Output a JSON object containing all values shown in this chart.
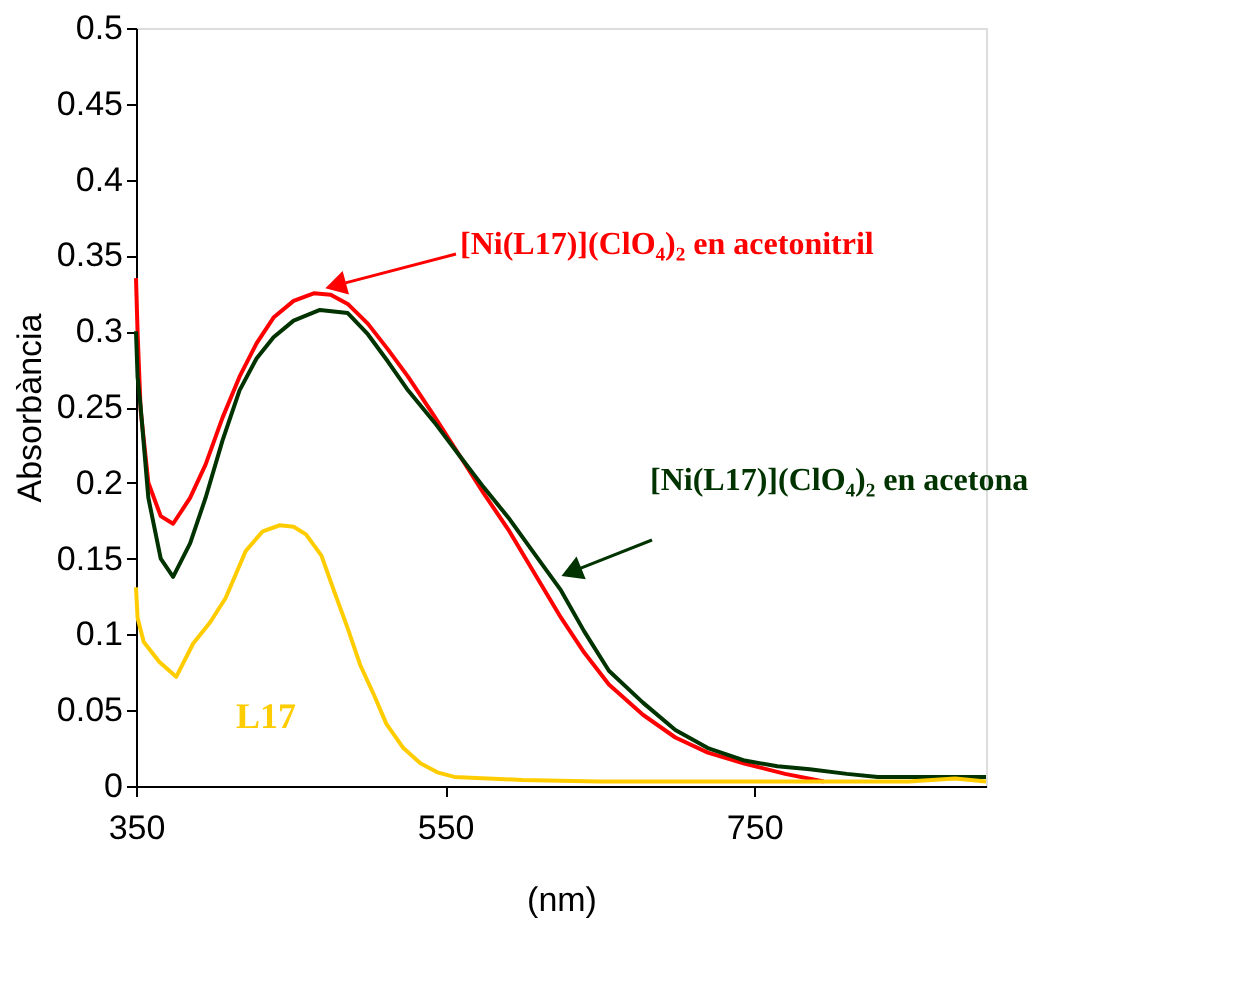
{
  "chart_data": {
    "type": "line",
    "xlabel": "(nm)",
    "ylabel": "Absorbància",
    "xlim": [
      350,
      900
    ],
    "xticks": [
      350,
      550,
      750
    ],
    "ylim": [
      0,
      0.5
    ],
    "yticks": [
      0,
      0.05,
      0.1,
      0.15,
      0.2,
      0.25,
      0.3,
      0.35,
      0.4,
      0.45,
      0.5
    ],
    "grid": false,
    "series": [
      {
        "name": "[Ni(L17)](ClO₄)₂ en acetonitril",
        "color": "#ff0000",
        "x": [
          350,
          351,
          353,
          358,
          366,
          374,
          385,
          395,
          406,
          417,
          428,
          439,
          452,
          465,
          476,
          487,
          500,
          513,
          526,
          543,
          560,
          575,
          591,
          608,
          625,
          640,
          656,
          678,
          699,
          720,
          743,
          770,
          795
        ],
        "values": [
          0.335,
          0.3,
          0.248,
          0.2,
          0.178,
          0.173,
          0.19,
          0.212,
          0.243,
          0.27,
          0.292,
          0.309,
          0.32,
          0.325,
          0.324,
          0.318,
          0.305,
          0.288,
          0.27,
          0.244,
          0.217,
          0.193,
          0.169,
          0.14,
          0.111,
          0.088,
          0.067,
          0.047,
          0.032,
          0.022,
          0.015,
          0.008,
          0.003
        ]
      },
      {
        "name": "[Ni(L17)](ClO₄)₂ en acetona",
        "color": "#003300",
        "x": [
          350,
          351,
          353,
          358,
          366,
          374,
          385,
          395,
          406,
          417,
          428,
          439,
          452,
          469,
          487,
          500,
          513,
          526,
          543,
          560,
          575,
          591,
          608,
          625,
          640,
          656,
          678,
          699,
          720,
          743,
          765,
          786,
          810,
          830,
          870,
          900
        ],
        "values": [
          0.3,
          0.27,
          0.25,
          0.19,
          0.15,
          0.138,
          0.16,
          0.19,
          0.228,
          0.261,
          0.282,
          0.296,
          0.307,
          0.314,
          0.312,
          0.298,
          0.28,
          0.261,
          0.24,
          0.217,
          0.197,
          0.177,
          0.153,
          0.129,
          0.102,
          0.076,
          0.055,
          0.037,
          0.025,
          0.017,
          0.013,
          0.011,
          0.008,
          0.006,
          0.006,
          0.006
        ]
      },
      {
        "name": "L17",
        "color": "#ffcc00",
        "x": [
          350,
          351,
          355,
          365,
          376,
          387,
          398,
          408,
          421,
          432,
          443,
          452,
          460,
          470,
          478,
          487,
          495,
          504,
          512,
          523,
          534,
          545,
          556,
          600,
          650,
          700,
          750,
          800,
          850,
          880,
          900
        ],
        "values": [
          0.131,
          0.111,
          0.095,
          0.082,
          0.072,
          0.094,
          0.108,
          0.124,
          0.155,
          0.168,
          0.172,
          0.171,
          0.166,
          0.152,
          0.129,
          0.104,
          0.08,
          0.06,
          0.041,
          0.025,
          0.015,
          0.009,
          0.006,
          0.004,
          0.003,
          0.003,
          0.003,
          0.003,
          0.003,
          0.005,
          0.003
        ]
      }
    ]
  }
}
